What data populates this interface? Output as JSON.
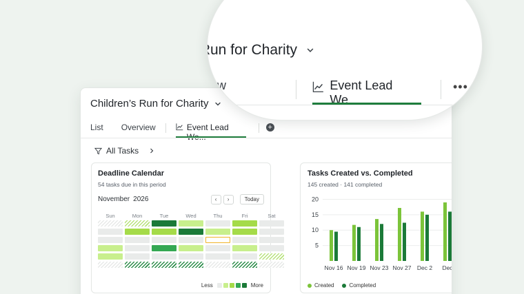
{
  "project": {
    "title": "Children’s Run for Charity"
  },
  "tabs": [
    {
      "label": "List"
    },
    {
      "label": "Overview"
    },
    {
      "label": "Event Lead We..."
    }
  ],
  "add_tab_label": "+",
  "more_label": "•••",
  "filter": {
    "label": "All Tasks"
  },
  "calendar": {
    "title": "Deadline Calendar",
    "subtitle": "54 tasks due in this period",
    "month": "November",
    "year": "2026",
    "prev": "‹",
    "next": "›",
    "today_label": "Today",
    "days": [
      "Sun",
      "Mon",
      "Tue",
      "Wed",
      "Thu",
      "Fri",
      "Sat"
    ],
    "rows": [
      [
        "hatch",
        "hatch-l",
        "lvl4",
        "lvl1",
        "lvl0",
        "lvl2",
        "lvl0"
      ],
      [
        "lvl0",
        "lvl2",
        "lvl2",
        "lvl4",
        "lvl1",
        "lvl2",
        "lvl0"
      ],
      [
        "lvl0",
        "lvl0",
        "lvl0",
        "lvl0",
        "today",
        "lvl0",
        "lvl0"
      ],
      [
        "lvl1",
        "lvl0",
        "lvl3",
        "lvl1",
        "lvl0",
        "lvl1",
        "lvl0"
      ],
      [
        "lvl1",
        "lvl0",
        "lvl0",
        "lvl0",
        "lvl0",
        "lvl0",
        "hatch-l"
      ],
      [
        "hatch",
        "hatch-d",
        "hatch-d",
        "hatch-d",
        "hatch",
        "hatch-d",
        "hatch"
      ]
    ],
    "legend_less": "Less",
    "legend_more": "More",
    "legend_colors": [
      "#e9ebea",
      "#c8ef8d",
      "#a5db49",
      "#34a853",
      "#1b7a38"
    ]
  },
  "chart": {
    "title": "Tasks Created vs. Completed",
    "subtitle": "145 created · 141 completed"
  },
  "chart_data": {
    "type": "bar",
    "title": "Tasks Created vs. Completed",
    "categories": [
      "Nov 16",
      "Nov 19",
      "Nov 23",
      "Nov 27",
      "Dec 2",
      "Dec"
    ],
    "series": [
      {
        "name": "Created",
        "color": "#7cc43a",
        "values": [
          10,
          11.7,
          13.6,
          17.2,
          16,
          19
        ]
      },
      {
        "name": "Completed",
        "color": "#1b7a38",
        "values": [
          9.5,
          11,
          12,
          12.4,
          15,
          16
        ]
      }
    ],
    "yticks": [
      5,
      10,
      15,
      20
    ],
    "ylim": [
      0,
      21
    ]
  }
}
